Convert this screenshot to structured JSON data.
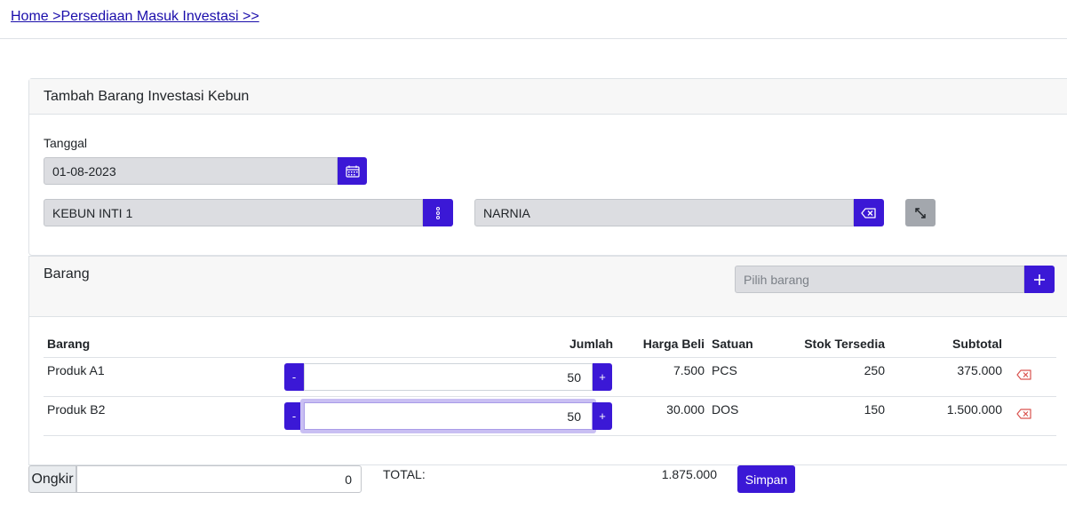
{
  "breadcrumb": "Home >Persediaan Masuk Investasi >>",
  "form": {
    "title": "Tambah Barang Investasi Kebun",
    "date_label": "Tanggal",
    "date_value": "01-08-2023",
    "kebun_value": "KEBUN INTI 1",
    "person_value": "NARNIA"
  },
  "items_section": {
    "title": "Barang",
    "search_placeholder": "Pilih barang"
  },
  "table": {
    "headers": {
      "barang": "Barang",
      "jumlah": "Jumlah",
      "harga_beli": "Harga Beli",
      "satuan": "Satuan",
      "stok": "Stok Tersedia",
      "subtotal": "Subtotal"
    },
    "rows": [
      {
        "barang": "Produk A1",
        "jumlah": "50",
        "harga_beli": "7.500",
        "satuan": "PCS",
        "stok": "250",
        "subtotal": "375.000"
      },
      {
        "barang": "Produk B2",
        "jumlah": "50",
        "harga_beli": "30.000",
        "satuan": "DOS",
        "stok": "150",
        "subtotal": "1.500.000"
      }
    ]
  },
  "footer": {
    "ongkir_label": "Ongkir",
    "ongkir_value": "0",
    "total_label": "TOTAL:",
    "total_value": "1.875.000",
    "save_label": "Simpan"
  },
  "qty_buttons": {
    "minus": "-",
    "plus": "+"
  },
  "colors": {
    "accent": "#3b18d6",
    "delete": "#d9534f"
  }
}
